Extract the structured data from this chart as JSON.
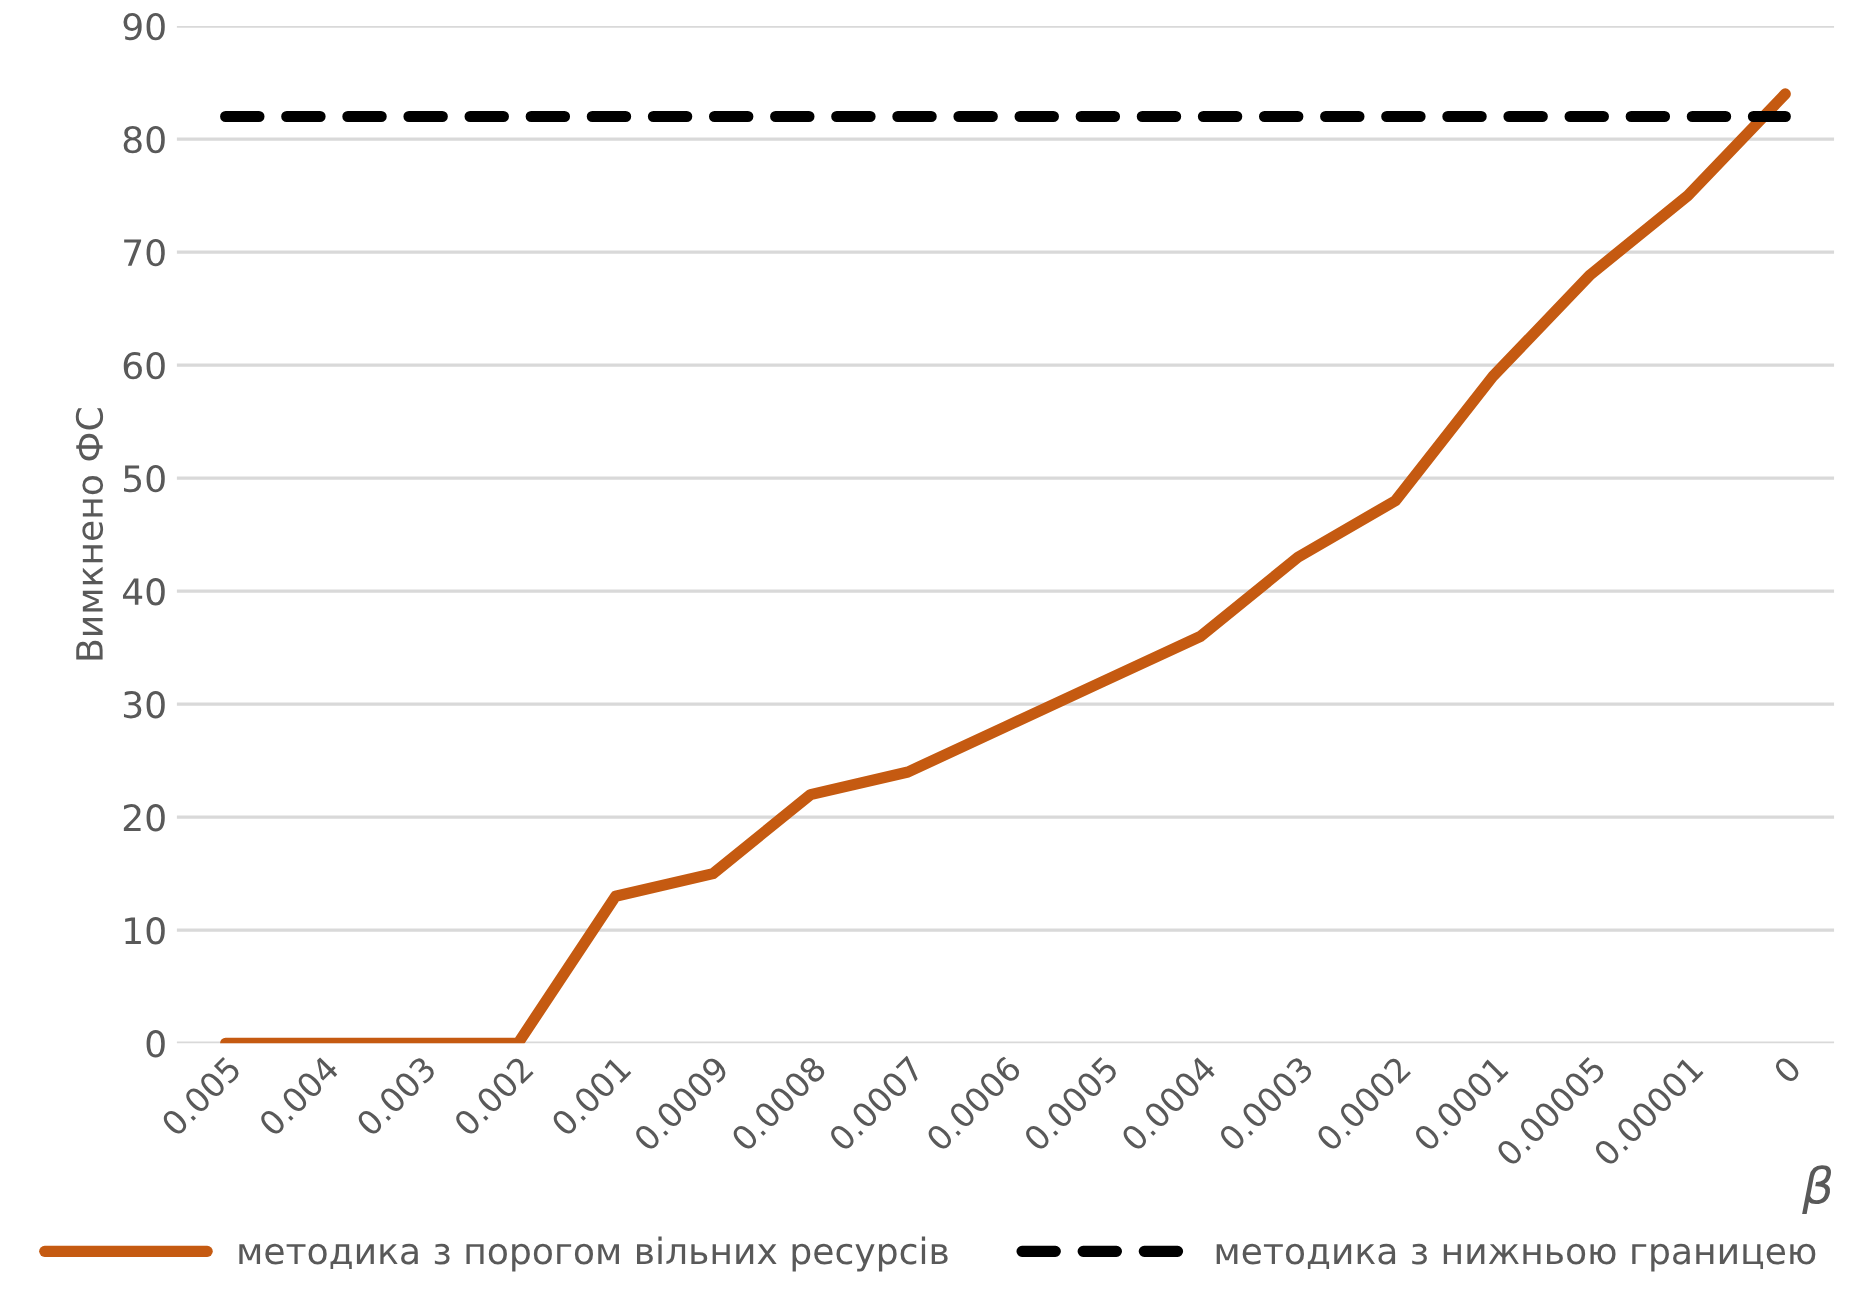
{
  "chart_data": {
    "type": "line",
    "xlabel": "β",
    "ylabel": "Вимкнено ФС",
    "categories": [
      "0.005",
      "0.004",
      "0.003",
      "0.002",
      "0.001",
      "0.0009",
      "0.0008",
      "0.0007",
      "0.0006",
      "0.0005",
      "0.0004",
      "0.0003",
      "0.0002",
      "0.0001",
      "0.00005",
      "0.00001",
      "0"
    ],
    "series": [
      {
        "name": "методика з порогом вільних ресурсів",
        "color": "#c55a11",
        "line_style": "solid",
        "values": [
          0,
          0,
          0,
          0,
          13,
          15,
          22,
          24,
          28,
          32,
          36,
          43,
          48,
          59,
          68,
          75,
          84
        ]
      },
      {
        "name": "методика з нижньою границею",
        "color": "#000000",
        "line_style": "dashed",
        "values": [
          82,
          82,
          82,
          82,
          82,
          82,
          82,
          82,
          82,
          82,
          82,
          82,
          82,
          82,
          82,
          82,
          82
        ]
      }
    ],
    "ylim": [
      0,
      90
    ],
    "yticks": [
      0,
      10,
      20,
      30,
      40,
      50,
      60,
      70,
      80,
      90
    ],
    "grid": "y",
    "legend": "bottom",
    "marker": "none"
  }
}
